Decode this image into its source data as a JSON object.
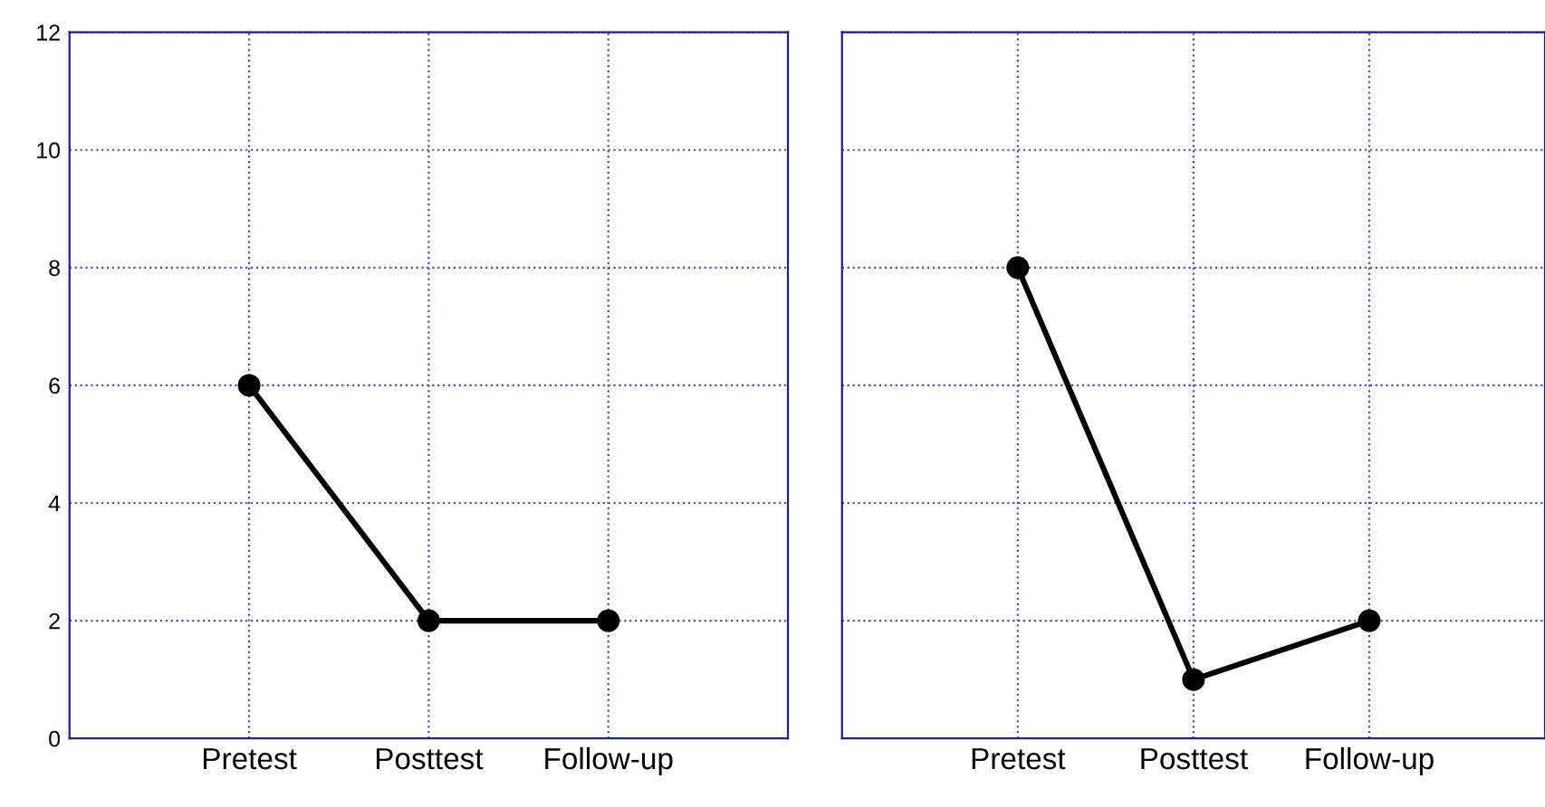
{
  "chart_data": [
    {
      "type": "line",
      "categories": [
        "Pretest",
        "Posttest",
        "Follow-up"
      ],
      "series": [
        {
          "color": "#000000",
          "values": [
            6,
            2,
            2
          ]
        }
      ],
      "ylim": [
        0,
        12
      ],
      "yticks": [
        0,
        2,
        4,
        6,
        8,
        10,
        12
      ],
      "grid": true,
      "marker": "circle",
      "line_style": "solid"
    },
    {
      "type": "line",
      "categories": [
        "Pretest",
        "Posttest",
        "Follow-up"
      ],
      "series": [
        {
          "color": "#000000",
          "values": [
            8,
            1,
            2
          ]
        }
      ],
      "ylim": [
        0,
        12
      ],
      "yticks": [
        0,
        2,
        4,
        6,
        8,
        10,
        12
      ],
      "grid": true,
      "marker": "circle",
      "line_style": "solid",
      "tick_labels": "x"
    }
  ]
}
